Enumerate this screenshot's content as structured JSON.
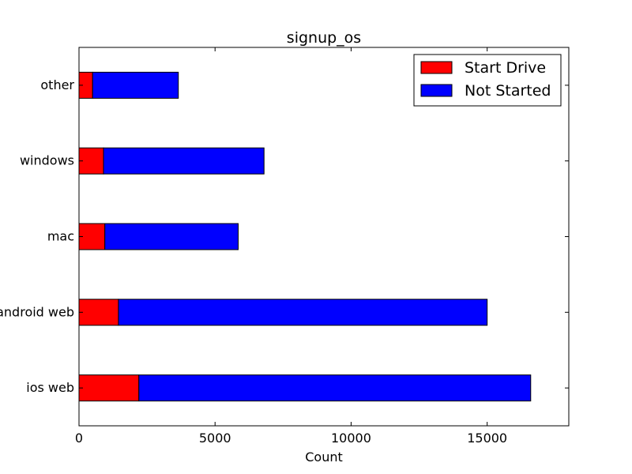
{
  "chart_data": {
    "type": "bar",
    "orientation": "horizontal",
    "stacked": true,
    "title": "signup_os",
    "xlabel": "Count",
    "ylabel": "",
    "xlim": [
      0,
      18000
    ],
    "xticks": [
      0,
      5000,
      10000,
      15000
    ],
    "xtick_labels": [
      "0",
      "5000",
      "10000",
      "15000"
    ],
    "categories": [
      "ios web",
      "android web",
      "mac",
      "windows",
      "other"
    ],
    "series": [
      {
        "name": "Start Drive",
        "color": "#ff0000",
        "values": [
          2200,
          1450,
          950,
          900,
          500
        ]
      },
      {
        "name": "Not Started",
        "color": "#0000ff",
        "values": [
          14400,
          13550,
          4900,
          5900,
          3150
        ]
      }
    ],
    "grid": false,
    "legend": "top-right"
  }
}
